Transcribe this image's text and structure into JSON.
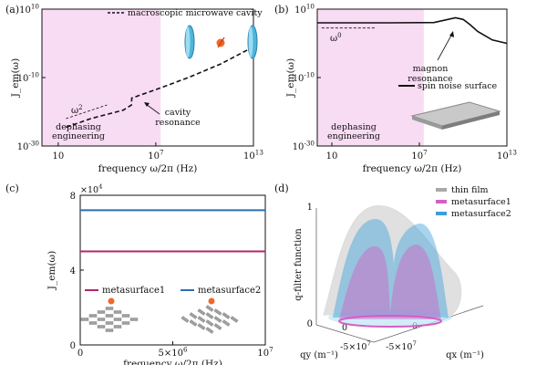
{
  "chart_data": [
    {
      "panel": "(a)",
      "type": "line",
      "xlabel": "frequency ω/2π (Hz)",
      "ylabel": "J_em(ω)",
      "x_scale": "log",
      "y_scale": "log",
      "xlim": [
        1,
        10000000000000.0
      ],
      "ylim": [
        1e-30,
        10000000000.0
      ],
      "xticks": [
        "10",
        "10^7",
        "10^13"
      ],
      "yticks": [
        "10^10",
        "10^-10",
        "10^-30"
      ],
      "shaded_region": {
        "label": [
          "dephasing",
          "engineering"
        ],
        "x_range": [
          1,
          20000000.0
        ],
        "color": "#f7d6f2"
      },
      "series": [
        {
          "name": "macroscopic microwave cavity",
          "style": "dashed",
          "x": [
            30,
            1000.0,
            100000.0,
            320000.0,
            330000.0,
            10000000.0,
            1000000000.0,
            100000000000.0,
            10000000000000.0
          ],
          "y": [
            3e-25,
            1e-22,
            3e-20,
            1e-18,
            1e-16,
            3e-14,
            1e-10,
            1e-06,
            0.1
          ]
        }
      ],
      "reference_line": {
        "label": "ω²",
        "x": [
          30,
          10000.0
        ],
        "y": [
          1e-22,
          1e-18
        ]
      },
      "annotations": [
        {
          "text": [
            "cavity",
            "resonance"
          ]
        }
      ]
    },
    {
      "panel": "(b)",
      "type": "line",
      "xlabel": "frequency ω/2π (Hz)",
      "ylabel": "J_em(ω)",
      "x_scale": "log",
      "y_scale": "log",
      "xlim": [
        1,
        10000000000000.0
      ],
      "ylim": [
        1e-30,
        10000000000.0
      ],
      "xticks": [
        "10",
        "10^7",
        "10^13"
      ],
      "yticks": [
        "10^10",
        "10^-10",
        "10^-30"
      ],
      "shaded_region": {
        "label": [
          "dephasing",
          "engineering"
        ],
        "x_range": [
          1,
          20000000.0
        ],
        "color": "#f7d6f2"
      },
      "series": [
        {
          "name": "spin noise surface",
          "style": "solid",
          "x": [
            1,
            100000.0,
            100000000.0,
            3000000000.0,
            10000000000.0,
            30000000000.0,
            100000000000.0,
            1000000000000.0,
            10000000000000.0
          ],
          "y": [
            1000000.0,
            1000000.0,
            1200000.0,
            30000000.0,
            10000000.0,
            300000.0,
            3000.0,
            10.0,
            1.0
          ]
        }
      ],
      "reference_line": {
        "label": "ω⁰",
        "x": [
          2,
          10000.0
        ],
        "y": [
          30000.0,
          30000.0
        ]
      },
      "annotations": [
        {
          "text": [
            "magnon",
            "resonance"
          ]
        }
      ]
    },
    {
      "panel": "(c)",
      "type": "line",
      "xlabel": "frequency ω/2π (Hz)",
      "ylabel": "J_em(ω)",
      "multiplier": "×10^4",
      "xlim": [
        0,
        10000000.0
      ],
      "ylim": [
        0,
        80000.0
      ],
      "xticks": [
        "0",
        "5×10^6",
        "10^7"
      ],
      "yticks": [
        "0",
        "4",
        "8"
      ],
      "series": [
        {
          "name": "metasurface1",
          "color": "#b5256e",
          "x": [
            0,
            10000000.0
          ],
          "y": [
            50000.0,
            50000.0
          ]
        },
        {
          "name": "metasurface2",
          "color": "#2a6fb3",
          "x": [
            0,
            10000000.0
          ],
          "y": [
            72000.0,
            72000.0
          ]
        }
      ]
    },
    {
      "panel": "(d)",
      "type": "surface",
      "zlabel": "q-filter function",
      "xlabel": "q_x (m^-1)",
      "ylabel": "q_y (m^-1)",
      "zticks": [
        "0",
        "1"
      ],
      "xticks": [
        "-5×10^7",
        "0"
      ],
      "yticks": [
        "-5×10^7",
        "0"
      ],
      "series": [
        {
          "name": "thin film",
          "color": "#a8a8a8"
        },
        {
          "name": "metasurface1",
          "color": "#d35fc4"
        },
        {
          "name": "metasurface2",
          "color": "#3b9fd9"
        }
      ]
    }
  ]
}
